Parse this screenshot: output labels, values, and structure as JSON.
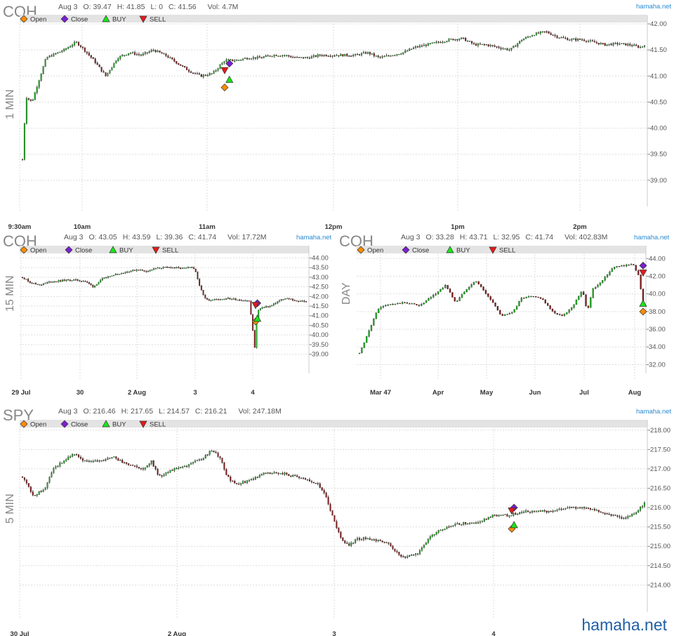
{
  "site": {
    "brand_small": "hamaha.net",
    "brand_big": "hamaha.net"
  },
  "legend": {
    "open": "Open",
    "close": "Close",
    "buy": "BUY",
    "sell": "SELL"
  },
  "colors": {
    "up": "#1db31d",
    "down": "#8b1a1a",
    "open": "#ff8c00",
    "close": "#7b1fd1",
    "buy": "#19e619",
    "sell": "#e61919",
    "brand": "#1f5fa6"
  },
  "panels": [
    {
      "symbol": "COH",
      "timeframe": "1 MIN",
      "ohlc": {
        "date": "Aug 3",
        "o": "O: 39.47",
        "h": "H: 41.85",
        "l": "L: 0",
        "c": "C: 41.56",
        "vol": "Vol: 4.7M"
      }
    },
    {
      "symbol": "COH",
      "timeframe": "15 MIN",
      "ohlc": {
        "date": "Aug 3",
        "o": "O: 43.05",
        "h": "H: 43.59",
        "l": "L: 39.36",
        "c": "C: 41.74",
        "vol": "Vol: 17.72M"
      }
    },
    {
      "symbol": "COH",
      "timeframe": "DAY",
      "ohlc": {
        "date": "Aug 3",
        "o": "O: 33.28",
        "h": "H: 43.71",
        "l": "L: 32.95",
        "c": "C: 41.74",
        "vol": "Vol: 402.83M"
      }
    },
    {
      "symbol": "SPY",
      "timeframe": "5 MIN",
      "ohlc": {
        "date": "Aug 3",
        "o": "O: 216.46",
        "h": "H: 217.65",
        "l": "L: 214.57",
        "c": "C: 216.21",
        "vol": "Vol: 247.18M"
      }
    }
  ],
  "chart_data": [
    {
      "type": "candlestick",
      "symbol": "COH",
      "timeframe": "1 MIN",
      "ylim": [
        38.5,
        42.0
      ],
      "yticks": [
        "42.00",
        "41.50",
        "41.00",
        "40.50",
        "40.00",
        "39.50",
        "39.00"
      ],
      "xticks": [
        "9:30am",
        "10am",
        "11am",
        "12pm",
        "1pm",
        "2pm"
      ],
      "grid": true,
      "price_path": [
        [
          0,
          39.4
        ],
        [
          0.3,
          40.6
        ],
        [
          0.8,
          40.5
        ],
        [
          1.5,
          41.0
        ],
        [
          2.0,
          41.35
        ],
        [
          2.5,
          41.4
        ],
        [
          3.5,
          41.5
        ],
        [
          4.5,
          41.65
        ],
        [
          5,
          41.55
        ],
        [
          6,
          41.3
        ],
        [
          7,
          41.0
        ],
        [
          8,
          41.35
        ],
        [
          9,
          41.45
        ],
        [
          10,
          41.4
        ],
        [
          11,
          41.5
        ],
        [
          12,
          41.4
        ],
        [
          13,
          41.25
        ],
        [
          14,
          41.1
        ],
        [
          15,
          41.0
        ],
        [
          16,
          41.05
        ],
        [
          17,
          41.3
        ],
        [
          18,
          41.3
        ],
        [
          19,
          41.35
        ],
        [
          20,
          41.35
        ],
        [
          21,
          41.4
        ],
        [
          22,
          41.4
        ],
        [
          23,
          41.35
        ],
        [
          24,
          41.35
        ],
        [
          25,
          41.4
        ],
        [
          26,
          41.4
        ],
        [
          27,
          41.4
        ],
        [
          28,
          41.4
        ],
        [
          29,
          41.45
        ],
        [
          30,
          41.35
        ],
        [
          31,
          41.4
        ],
        [
          32,
          41.45
        ],
        [
          33,
          41.55
        ],
        [
          34,
          41.6
        ],
        [
          35,
          41.65
        ],
        [
          36,
          41.7
        ],
        [
          37,
          41.72
        ],
        [
          38,
          41.6
        ],
        [
          39,
          41.6
        ],
        [
          40,
          41.55
        ],
        [
          41,
          41.5
        ],
        [
          42,
          41.7
        ],
        [
          43,
          41.8
        ],
        [
          44,
          41.85
        ],
        [
          45,
          41.75
        ],
        [
          46,
          41.7
        ],
        [
          47,
          41.7
        ],
        [
          48,
          41.65
        ],
        [
          49,
          41.6
        ],
        [
          50,
          41.62
        ],
        [
          51,
          41.6
        ],
        [
          52,
          41.55
        ],
        [
          52.3,
          41.6
        ]
      ],
      "x_span": 52.3,
      "markers": [
        {
          "kind": "open",
          "x": 17.0,
          "y": 40.78
        },
        {
          "kind": "close",
          "x": 17.4,
          "y": 41.24
        },
        {
          "kind": "buy",
          "x": 17.4,
          "y": 40.93
        },
        {
          "kind": "sell",
          "x": 17.0,
          "y": 41.11
        }
      ]
    },
    {
      "type": "candlestick",
      "symbol": "COH",
      "timeframe": "15 MIN",
      "ylim": [
        38.0,
        44.2
      ],
      "yticks": [
        "44.00",
        "43.50",
        "43.00",
        "42.50",
        "42.00",
        "41.50",
        "41.00",
        "40.50",
        "40.00",
        "39.50",
        "39.00"
      ],
      "xticks": [
        "29 Jul",
        "30",
        "2 Aug",
        "3",
        "4"
      ],
      "grid": true,
      "price_path": [
        [
          0,
          43.0
        ],
        [
          1,
          42.7
        ],
        [
          2,
          42.6
        ],
        [
          3,
          42.75
        ],
        [
          4,
          42.8
        ],
        [
          5,
          42.85
        ],
        [
          6,
          42.85
        ],
        [
          7,
          42.8
        ],
        [
          8,
          42.5
        ],
        [
          9,
          42.9
        ],
        [
          10,
          43.1
        ],
        [
          11,
          43.2
        ],
        [
          12,
          43.3
        ],
        [
          13,
          43.4
        ],
        [
          14,
          43.3
        ],
        [
          15,
          43.45
        ],
        [
          16,
          43.5
        ],
        [
          17,
          43.5
        ],
        [
          18,
          43.45
        ],
        [
          19,
          43.5
        ],
        [
          19.5,
          43.4
        ],
        [
          20,
          42.5
        ],
        [
          20.5,
          42.0
        ],
        [
          21,
          41.8
        ],
        [
          22,
          41.85
        ],
        [
          23,
          41.9
        ],
        [
          24,
          41.85
        ],
        [
          25,
          41.8
        ],
        [
          25.6,
          41.75
        ],
        [
          26.2,
          39.36
        ],
        [
          26.5,
          41.3
        ],
        [
          27,
          41.4
        ],
        [
          28,
          41.5
        ],
        [
          29,
          41.8
        ],
        [
          30,
          41.9
        ],
        [
          31,
          41.75
        ],
        [
          32,
          41.75
        ]
      ],
      "x_span": 32,
      "markers": [
        {
          "kind": "open",
          "x": 26.3,
          "y": 40.7
        },
        {
          "kind": "close",
          "x": 26.5,
          "y": 41.65
        },
        {
          "kind": "buy",
          "x": 26.5,
          "y": 40.85
        },
        {
          "kind": "sell",
          "x": 26.3,
          "y": 41.55
        }
      ]
    },
    {
      "type": "candlestick",
      "symbol": "COH",
      "timeframe": "DAY",
      "ylim": [
        31.0,
        44.5
      ],
      "yticks": [
        "44.00",
        "42.00",
        "40.00",
        "38.00",
        "36.00",
        "34.00",
        "32.00"
      ],
      "xticks": [
        "Mar 47",
        "Apr",
        "May",
        "Jun",
        "Jul",
        "Aug"
      ],
      "grid": true,
      "price_path": [
        [
          0,
          33.3
        ],
        [
          1,
          34.5
        ],
        [
          2,
          36.0
        ],
        [
          3,
          37.5
        ],
        [
          4,
          38.5
        ],
        [
          6,
          38.8
        ],
        [
          9,
          39.0
        ],
        [
          12,
          38.7
        ],
        [
          15,
          40.0
        ],
        [
          17,
          41.0
        ],
        [
          19,
          39.0
        ],
        [
          21,
          40.5
        ],
        [
          23,
          41.5
        ],
        [
          25,
          40.0
        ],
        [
          27,
          38.5
        ],
        [
          28,
          37.5
        ],
        [
          30,
          37.8
        ],
        [
          32,
          39.5
        ],
        [
          34,
          39.7
        ],
        [
          36,
          39.5
        ],
        [
          38,
          38.0
        ],
        [
          40,
          37.5
        ],
        [
          42,
          38.5
        ],
        [
          44,
          40.5
        ],
        [
          45,
          38.0
        ],
        [
          46,
          40.5
        ],
        [
          48,
          41.5
        ],
        [
          50,
          43.0
        ],
        [
          52,
          43.2
        ],
        [
          54,
          43.3
        ],
        [
          55,
          42.3
        ],
        [
          56,
          39.0
        ]
      ],
      "x_span": 56,
      "markers": [
        {
          "kind": "open",
          "x": 56,
          "y": 38.0
        },
        {
          "kind": "close",
          "x": 56,
          "y": 43.2
        },
        {
          "kind": "buy",
          "x": 56,
          "y": 38.9
        },
        {
          "kind": "sell",
          "x": 56,
          "y": 42.4
        }
      ]
    },
    {
      "type": "candlestick",
      "symbol": "SPY",
      "timeframe": "5 MIN",
      "ylim": [
        213.3,
        218.05
      ],
      "yticks": [
        "218.00",
        "217.50",
        "217.00",
        "216.50",
        "216.00",
        "215.50",
        "215.00",
        "214.50",
        "214.00"
      ],
      "xticks": [
        "30 Jul",
        "2 Aug",
        "3",
        "4"
      ],
      "grid": true,
      "price_path": [
        [
          0,
          216.8
        ],
        [
          1.5,
          216.3
        ],
        [
          3,
          216.5
        ],
        [
          4,
          217.0
        ],
        [
          6,
          217.3
        ],
        [
          7,
          217.4
        ],
        [
          8,
          217.2
        ],
        [
          10,
          217.2
        ],
        [
          12,
          217.3
        ],
        [
          14,
          217.1
        ],
        [
          16,
          217.0
        ],
        [
          17,
          217.2
        ],
        [
          18,
          216.8
        ],
        [
          19,
          216.9
        ],
        [
          20,
          217.0
        ],
        [
          22,
          217.1
        ],
        [
          24,
          217.3
        ],
        [
          25,
          217.5
        ],
        [
          26,
          217.3
        ],
        [
          27,
          216.8
        ],
        [
          28,
          216.6
        ],
        [
          30,
          216.7
        ],
        [
          31,
          216.8
        ],
        [
          32,
          216.9
        ],
        [
          34,
          216.9
        ],
        [
          36,
          216.8
        ],
        [
          38,
          216.7
        ],
        [
          39,
          216.6
        ],
        [
          40,
          216.3
        ],
        [
          41,
          215.7
        ],
        [
          42,
          215.2
        ],
        [
          43,
          215.0
        ],
        [
          44,
          215.2
        ],
        [
          46,
          215.2
        ],
        [
          48,
          215.1
        ],
        [
          50,
          214.7
        ],
        [
          52,
          214.8
        ],
        [
          54,
          215.3
        ],
        [
          56,
          215.5
        ],
        [
          58,
          215.6
        ],
        [
          60,
          215.6
        ],
        [
          62,
          215.8
        ],
        [
          64,
          215.8
        ],
        [
          66,
          215.9
        ],
        [
          68,
          215.9
        ],
        [
          70,
          215.9
        ],
        [
          72,
          216.0
        ],
        [
          74,
          216.0
        ],
        [
          76,
          215.9
        ],
        [
          78,
          215.8
        ],
        [
          79,
          215.7
        ],
        [
          80,
          215.8
        ],
        [
          81,
          215.9
        ],
        [
          82,
          216.1
        ]
      ],
      "x_span": 82,
      "markers": [
        {
          "kind": "open",
          "x": 64.5,
          "y": 215.45
        },
        {
          "kind": "close",
          "x": 64.8,
          "y": 216.0
        },
        {
          "kind": "buy",
          "x": 64.8,
          "y": 215.55
        },
        {
          "kind": "sell",
          "x": 64.5,
          "y": 215.92
        }
      ]
    }
  ]
}
